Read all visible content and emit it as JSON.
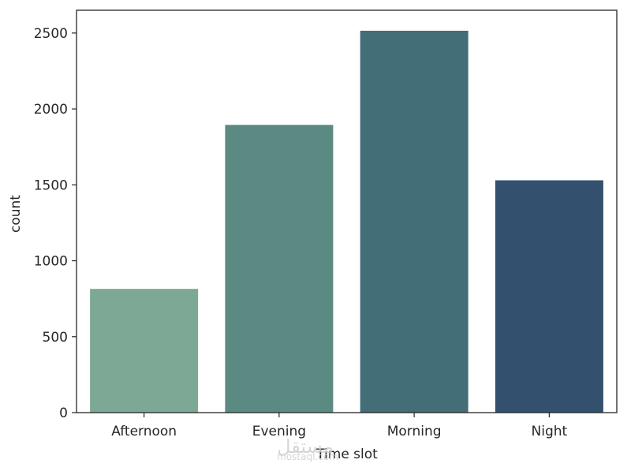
{
  "chart_data": {
    "type": "bar",
    "title": "",
    "xlabel": "Time slot",
    "ylabel": "count",
    "categories": [
      "Afternoon",
      "Evening",
      "Morning",
      "Night"
    ],
    "values": [
      815,
      1895,
      2515,
      1530
    ],
    "colors": [
      "#7ea896",
      "#5a8a82",
      "#436d77",
      "#34506f"
    ],
    "ylim": [
      0,
      2650
    ],
    "yticks": [
      0,
      500,
      1000,
      1500,
      2000,
      2500
    ],
    "grid": false
  },
  "watermark": {
    "arabic": "مستقل",
    "latin": "mostaql.com"
  }
}
